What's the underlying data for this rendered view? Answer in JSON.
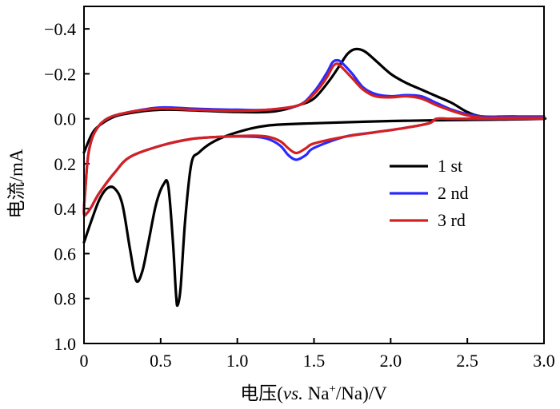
{
  "chart_data": {
    "type": "line",
    "title": "",
    "xlabel": {
      "prefix": "电压(",
      "italic": "vs.",
      "middle": " Na",
      "sup": "+",
      "suffix": "/Na)/V"
    },
    "ylabel": "电流/mA",
    "xlim": [
      0,
      3.0
    ],
    "ylim": [
      -0.5,
      1.0
    ],
    "y_inverted": true,
    "x_ticks": [
      {
        "value": 0,
        "label": "0"
      },
      {
        "value": 0.5,
        "label": "0.5"
      },
      {
        "value": 1.0,
        "label": "1.0"
      },
      {
        "value": 1.5,
        "label": "1.5"
      },
      {
        "value": 2.0,
        "label": "2.0"
      },
      {
        "value": 2.5,
        "label": "2.5"
      },
      {
        "value": 3.0,
        "label": "3.0"
      }
    ],
    "y_ticks": [
      {
        "value": -0.4,
        "label": "−0.4"
      },
      {
        "value": -0.2,
        "label": "−0.2"
      },
      {
        "value": 0.0,
        "label": "0.0"
      },
      {
        "value": 0.2,
        "label": "0.2"
      },
      {
        "value": 0.4,
        "label": "0.4"
      },
      {
        "value": 0.6,
        "label": "0.6"
      },
      {
        "value": 0.8,
        "label": "0.8"
      },
      {
        "value": 1.0,
        "label": "1.0"
      }
    ],
    "legend_position": "center-right",
    "series": [
      {
        "name": "1 st",
        "color": "#000000",
        "points": [
          [
            0.0,
            0.55
          ],
          [
            0.05,
            0.45
          ],
          [
            0.1,
            0.36
          ],
          [
            0.15,
            0.31
          ],
          [
            0.2,
            0.31
          ],
          [
            0.25,
            0.38
          ],
          [
            0.3,
            0.58
          ],
          [
            0.34,
            0.72
          ],
          [
            0.38,
            0.68
          ],
          [
            0.42,
            0.55
          ],
          [
            0.47,
            0.38
          ],
          [
            0.52,
            0.29
          ],
          [
            0.55,
            0.3
          ],
          [
            0.58,
            0.55
          ],
          [
            0.6,
            0.78
          ],
          [
            0.61,
            0.83
          ],
          [
            0.63,
            0.75
          ],
          [
            0.66,
            0.45
          ],
          [
            0.7,
            0.2
          ],
          [
            0.75,
            0.15
          ],
          [
            0.85,
            0.1
          ],
          [
            1.0,
            0.06
          ],
          [
            1.2,
            0.03
          ],
          [
            1.5,
            0.02
          ],
          [
            2.0,
            0.01
          ],
          [
            2.5,
            0.005
          ],
          [
            3.0,
            0.0
          ],
          [
            2.8,
            -0.01
          ],
          [
            2.6,
            -0.01
          ],
          [
            2.5,
            -0.03
          ],
          [
            2.4,
            -0.07
          ],
          [
            2.3,
            -0.1
          ],
          [
            2.2,
            -0.13
          ],
          [
            2.1,
            -0.16
          ],
          [
            2.0,
            -0.2
          ],
          [
            1.9,
            -0.26
          ],
          [
            1.83,
            -0.3
          ],
          [
            1.77,
            -0.31
          ],
          [
            1.72,
            -0.29
          ],
          [
            1.67,
            -0.24
          ],
          [
            1.6,
            -0.17
          ],
          [
            1.5,
            -0.09
          ],
          [
            1.4,
            -0.06
          ],
          [
            1.3,
            -0.04
          ],
          [
            1.2,
            -0.03
          ],
          [
            1.0,
            -0.03
          ],
          [
            0.8,
            -0.035
          ],
          [
            0.6,
            -0.04
          ],
          [
            0.5,
            -0.04
          ],
          [
            0.4,
            -0.035
          ],
          [
            0.3,
            -0.025
          ],
          [
            0.2,
            -0.01
          ],
          [
            0.1,
            0.03
          ],
          [
            0.05,
            0.07
          ],
          [
            0.0,
            0.15
          ]
        ]
      },
      {
        "name": "2 nd",
        "color": "#2a2aff",
        "points": [
          [
            3.0,
            0.0
          ],
          [
            2.6,
            0.0
          ],
          [
            2.4,
            0.0
          ],
          [
            2.3,
            0.0
          ],
          [
            2.25,
            0.02
          ],
          [
            2.1,
            0.04
          ],
          [
            1.9,
            0.06
          ],
          [
            1.7,
            0.08
          ],
          [
            1.5,
            0.13
          ],
          [
            1.45,
            0.16
          ],
          [
            1.4,
            0.18
          ],
          [
            1.37,
            0.18
          ],
          [
            1.33,
            0.16
          ],
          [
            1.28,
            0.12
          ],
          [
            1.2,
            0.09
          ],
          [
            1.1,
            0.08
          ],
          [
            0.9,
            0.08
          ],
          [
            0.7,
            0.09
          ],
          [
            0.5,
            0.12
          ],
          [
            0.3,
            0.17
          ],
          [
            0.2,
            0.24
          ],
          [
            0.1,
            0.33
          ],
          [
            0.05,
            0.39
          ],
          [
            0.02,
            0.42
          ],
          [
            0.0,
            0.42
          ],
          [
            0.01,
            0.3
          ],
          [
            0.03,
            0.15
          ],
          [
            0.07,
            0.06
          ],
          [
            0.15,
            0.0
          ],
          [
            0.3,
            -0.03
          ],
          [
            0.5,
            -0.05
          ],
          [
            0.7,
            -0.045
          ],
          [
            1.0,
            -0.04
          ],
          [
            1.2,
            -0.04
          ],
          [
            1.4,
            -0.06
          ],
          [
            1.5,
            -0.12
          ],
          [
            1.58,
            -0.2
          ],
          [
            1.62,
            -0.25
          ],
          [
            1.65,
            -0.26
          ],
          [
            1.68,
            -0.25
          ],
          [
            1.75,
            -0.2
          ],
          [
            1.82,
            -0.14
          ],
          [
            1.9,
            -0.11
          ],
          [
            2.0,
            -0.1
          ],
          [
            2.1,
            -0.105
          ],
          [
            2.2,
            -0.1
          ],
          [
            2.3,
            -0.07
          ],
          [
            2.4,
            -0.04
          ],
          [
            2.5,
            -0.02
          ],
          [
            2.6,
            -0.01
          ],
          [
            2.8,
            -0.01
          ],
          [
            3.0,
            -0.01
          ]
        ]
      },
      {
        "name": "3 rd",
        "color": "#d42020",
        "points": [
          [
            3.0,
            0.0
          ],
          [
            2.6,
            0.0
          ],
          [
            2.4,
            0.0
          ],
          [
            2.3,
            0.0
          ],
          [
            2.25,
            0.02
          ],
          [
            2.1,
            0.04
          ],
          [
            1.9,
            0.06
          ],
          [
            1.7,
            0.08
          ],
          [
            1.5,
            0.11
          ],
          [
            1.45,
            0.13
          ],
          [
            1.4,
            0.15
          ],
          [
            1.37,
            0.15
          ],
          [
            1.33,
            0.13
          ],
          [
            1.28,
            0.1
          ],
          [
            1.2,
            0.08
          ],
          [
            1.1,
            0.075
          ],
          [
            0.9,
            0.08
          ],
          [
            0.7,
            0.09
          ],
          [
            0.5,
            0.12
          ],
          [
            0.3,
            0.17
          ],
          [
            0.2,
            0.24
          ],
          [
            0.1,
            0.33
          ],
          [
            0.05,
            0.39
          ],
          [
            0.02,
            0.42
          ],
          [
            0.0,
            0.42
          ],
          [
            0.01,
            0.3
          ],
          [
            0.03,
            0.15
          ],
          [
            0.07,
            0.06
          ],
          [
            0.15,
            0.0
          ],
          [
            0.3,
            -0.03
          ],
          [
            0.5,
            -0.045
          ],
          [
            0.7,
            -0.04
          ],
          [
            1.0,
            -0.035
          ],
          [
            1.2,
            -0.04
          ],
          [
            1.4,
            -0.06
          ],
          [
            1.5,
            -0.11
          ],
          [
            1.58,
            -0.18
          ],
          [
            1.62,
            -0.23
          ],
          [
            1.65,
            -0.245
          ],
          [
            1.68,
            -0.23
          ],
          [
            1.75,
            -0.18
          ],
          [
            1.82,
            -0.13
          ],
          [
            1.9,
            -0.1
          ],
          [
            2.0,
            -0.095
          ],
          [
            2.1,
            -0.1
          ],
          [
            2.2,
            -0.09
          ],
          [
            2.3,
            -0.06
          ],
          [
            2.4,
            -0.035
          ],
          [
            2.5,
            -0.015
          ],
          [
            2.6,
            -0.005
          ],
          [
            2.8,
            -0.005
          ],
          [
            3.0,
            -0.005
          ]
        ]
      }
    ]
  }
}
